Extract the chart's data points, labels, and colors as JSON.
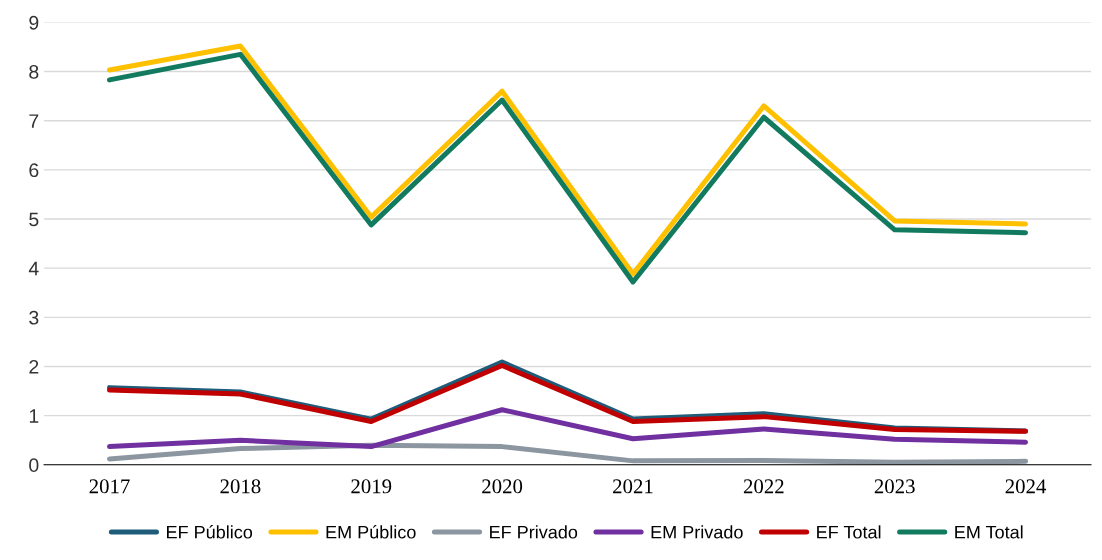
{
  "chart_data": {
    "type": "line",
    "categories": [
      "2017",
      "2018",
      "2019",
      "2020",
      "2021",
      "2022",
      "2023",
      "2024"
    ],
    "series": [
      {
        "name": "EF Público",
        "color": "#1f5c7a",
        "values": [
          1.57,
          1.48,
          0.93,
          2.09,
          0.93,
          1.04,
          0.75,
          0.69
        ]
      },
      {
        "name": "EM Público",
        "color": "#ffc000",
        "values": [
          8.03,
          8.52,
          5.04,
          7.6,
          3.88,
          7.3,
          4.96,
          4.9
        ]
      },
      {
        "name": "EF Privado",
        "color": "#8c96a0",
        "values": [
          0.12,
          0.33,
          0.4,
          0.37,
          0.08,
          0.09,
          0.05,
          0.07
        ]
      },
      {
        "name": "EM Privado",
        "color": "#7030a0",
        "values": [
          0.37,
          0.5,
          0.37,
          1.12,
          0.53,
          0.73,
          0.52,
          0.46
        ]
      },
      {
        "name": "EF Total",
        "color": "#c00000",
        "values": [
          1.52,
          1.44,
          0.88,
          2.02,
          0.88,
          0.98,
          0.72,
          0.68
        ]
      },
      {
        "name": "EM Total",
        "color": "#127a5e",
        "values": [
          7.83,
          8.35,
          4.88,
          7.42,
          3.72,
          7.07,
          4.78,
          4.72
        ]
      }
    ],
    "ylim": [
      0,
      9
    ],
    "yticks": [
      0,
      1,
      2,
      3,
      4,
      5,
      6,
      7,
      8,
      9
    ],
    "grid": "y",
    "legend": "bottom",
    "marker": "none",
    "line_style": "solid"
  }
}
